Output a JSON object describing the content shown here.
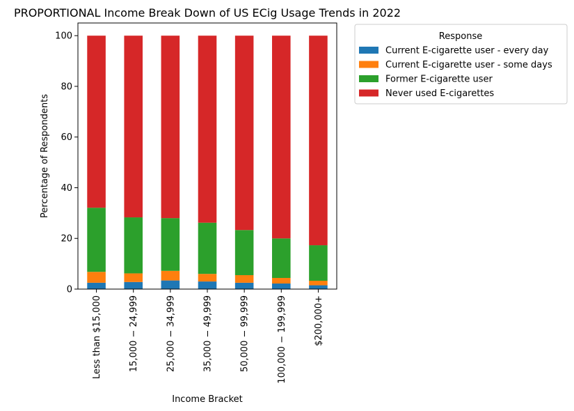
{
  "chart_data": {
    "type": "bar",
    "stacked": true,
    "title": "PROPORTIONAL Income Break Down of US ECig Usage Trends in 2022",
    "xlabel": "Income Bracket",
    "ylabel": "Percentage of Respondents",
    "ylim": [
      0,
      105
    ],
    "yticks": [
      0,
      20,
      40,
      60,
      80,
      100
    ],
    "grid": false,
    "legend_position": "outside-top-right",
    "legend_title": "Response",
    "categories": [
      "Less than $15,000",
      "15,000 − 24,999",
      "25,000 − 34,999",
      "35,000 − 49,999",
      "50,000 − 99,999",
      "100,000 − 199,999",
      "$200,000+"
    ],
    "series": [
      {
        "name": "Current E-cigarette user - every day",
        "color": "#1f77b4",
        "values": [
          2.5,
          2.8,
          3.4,
          3.0,
          2.5,
          2.2,
          1.5
        ]
      },
      {
        "name": "Current E-cigarette user - some days",
        "color": "#ff7f0e",
        "values": [
          4.3,
          3.4,
          3.8,
          3.0,
          3.0,
          2.2,
          1.8
        ]
      },
      {
        "name": "Former E-cigarette user",
        "color": "#2ca02c",
        "values": [
          25.3,
          22.1,
          20.8,
          20.2,
          17.8,
          15.6,
          14.0
        ]
      },
      {
        "name": "Never used E-cigarettes",
        "color": "#d62728",
        "values": [
          67.9,
          71.7,
          72.0,
          73.8,
          76.7,
          80.0,
          82.7
        ]
      }
    ]
  }
}
